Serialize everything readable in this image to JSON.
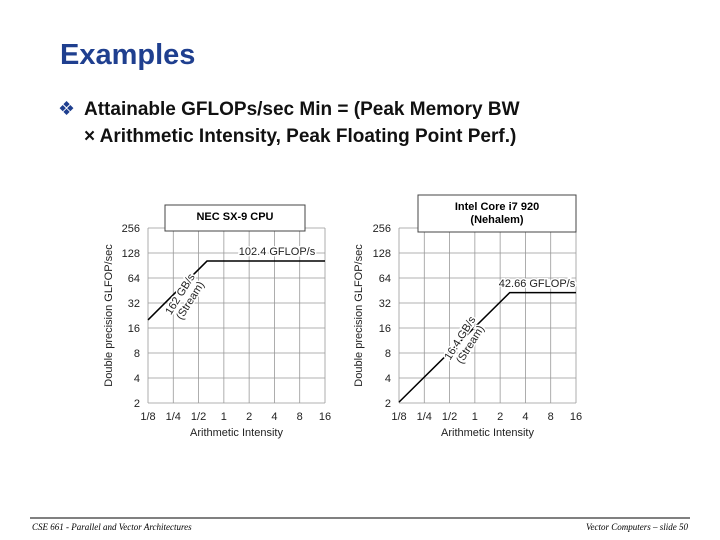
{
  "slide": {
    "title": "Examples",
    "bullet": [
      "Attainable GFLOPs/sec Min = (Peak Memory BW",
      "× Arithmetic Intensity, Peak Floating Point Perf.)"
    ],
    "footer_left": "CSE 661 - Parallel and Vector Architectures",
    "footer_right": "Vector Computers – slide 50"
  },
  "chart_data": [
    {
      "type": "line",
      "title": [
        "NEC SX-9 CPU"
      ],
      "xlabel": "Arithmetic Intensity",
      "ylabel": "Double precision GLFOP/sec",
      "log_scale": true,
      "grid": true,
      "color": "#000000",
      "x": [
        0.125,
        0.63,
        16
      ],
      "values": [
        20,
        102.4,
        102.4
      ],
      "xlim": [
        0.125,
        16
      ],
      "ylim": [
        2,
        256
      ],
      "xticks": [
        {
          "value": 0.125,
          "label": "1/8"
        },
        {
          "value": 0.25,
          "label": "1/4"
        },
        {
          "value": 0.5,
          "label": "1/2"
        },
        1,
        2,
        4,
        8,
        16
      ],
      "yticks": [
        2,
        4,
        8,
        16,
        32,
        64,
        128,
        256
      ],
      "annotations": [
        [
          "102.4 GFLOP/s"
        ],
        [
          "162 GB/s",
          "(Stream)"
        ]
      ]
    },
    {
      "type": "line",
      "title": [
        "Intel Core i7 920",
        "(Nehalem)"
      ],
      "xlabel": "Arithmetic Intensity",
      "ylabel": "Double precision GLFOP/sec",
      "log_scale": true,
      "grid": true,
      "color": "#000000",
      "x": [
        0.125,
        2.6,
        16
      ],
      "values": [
        2.05,
        42.66,
        42.66
      ],
      "xlim": [
        0.125,
        16
      ],
      "ylim": [
        2,
        256
      ],
      "xticks": [
        {
          "value": 0.125,
          "label": "1/8"
        },
        {
          "value": 0.25,
          "label": "1/4"
        },
        {
          "value": 0.5,
          "label": "1/2"
        },
        1,
        2,
        4,
        8,
        16
      ],
      "yticks": [
        2,
        4,
        8,
        16,
        32,
        64,
        128,
        256
      ],
      "annotations": [
        [
          "42.66 GFLOP/s"
        ],
        [
          "16.4 GB/s",
          "(Stream)"
        ]
      ]
    }
  ]
}
